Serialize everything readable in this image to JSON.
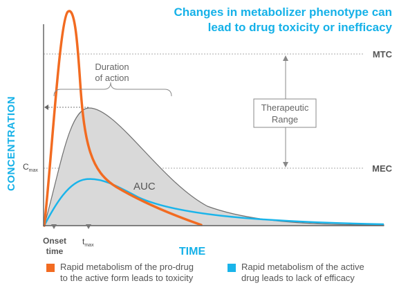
{
  "title": {
    "line1": "Changes in metabolizer phenotype can",
    "line2": "lead to drug toxicity or inefficacy"
  },
  "axes": {
    "y_label": "CONCENTRATION",
    "x_label": "TIME"
  },
  "levels": {
    "mtc": "MTC",
    "mec": "MEC",
    "cmax_main": "C",
    "cmax_sub": "max"
  },
  "annotations": {
    "duration_line1": "Duration",
    "duration_line2": "of action",
    "therapeutic_line1": "Therapeutic",
    "therapeutic_line2": "Range",
    "auc": "AUC",
    "onset_line1": "Onset",
    "onset_line2": "time",
    "tmax_main": "t",
    "tmax_sub": "max"
  },
  "legend": [
    {
      "line1": "Rapid metabolism of the pro-drug",
      "line2": "to the active form leads to toxicity",
      "color": "#f26b21"
    },
    {
      "line1": "Rapid metabolism of the active",
      "line2": "drug leads to lack of efficacy",
      "color": "#1ab4ea"
    }
  ],
  "colors": {
    "accent_blue": "#15b1e8",
    "orange": "#f26b21",
    "gray_fill": "#d9d9d9",
    "text_gray": "#555555"
  }
}
